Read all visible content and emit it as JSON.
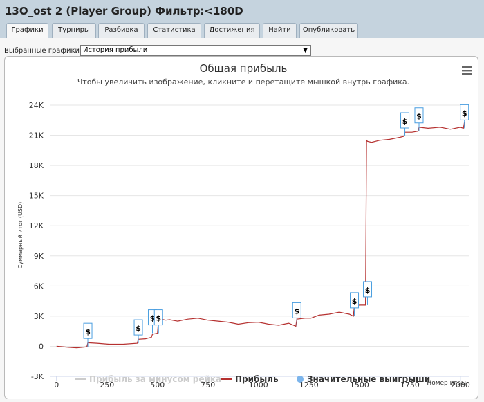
{
  "window": {
    "title": "13O_ost 2 (Player Group) Фильтр:<180D"
  },
  "tabs": [
    {
      "label": "Графики",
      "active": true
    },
    {
      "label": "Турниры"
    },
    {
      "label": "Разбивка"
    },
    {
      "label": "Статистика"
    },
    {
      "label": "Достижения"
    },
    {
      "label": "Найти"
    },
    {
      "label": "Опубликовать"
    }
  ],
  "selector": {
    "label": "Выбранные графики:",
    "value": "История прибыли"
  },
  "colors": {
    "line": "#b5302f",
    "accent_marker": "#4a9ee0",
    "grid": "#e6e6e6"
  },
  "chart_data": {
    "type": "line",
    "title": "Общая прибыль",
    "subtitle": "Чтобы увеличить изображение, кликните и перетащите мышкой внутрь графика.",
    "xlabel": "Номер игры",
    "ylabel": "Суммарный итог (USD)",
    "xlim": [
      -30,
      2045
    ],
    "ylim": [
      -3000,
      24000
    ],
    "x_ticks": [
      0,
      250,
      500,
      750,
      1000,
      1250,
      1500,
      1750,
      2000
    ],
    "y_ticks": [
      -3000,
      0,
      3000,
      6000,
      9000,
      12000,
      15000,
      18000,
      21000,
      24000
    ],
    "y_tick_labels": [
      "-3K",
      "0",
      "3K",
      "6K",
      "9K",
      "12K",
      "15K",
      "18K",
      "21K",
      "24K"
    ],
    "x_tick_labels": [
      "0",
      "250",
      "500",
      "750",
      "1000",
      "1250",
      "1500",
      "1750",
      "2000"
    ],
    "grid": true,
    "legend_position": "bottom",
    "series": [
      {
        "name": "Прибыль",
        "x": [
          0,
          60,
          100,
          150,
          155,
          200,
          260,
          330,
          400,
          405,
          440,
          470,
          475,
          500,
          505,
          520,
          540,
          560,
          600,
          650,
          700,
          750,
          800,
          850,
          900,
          950,
          1000,
          1050,
          1100,
          1150,
          1185,
          1190,
          1230,
          1260,
          1300,
          1350,
          1400,
          1450,
          1470,
          1475,
          1500,
          1530,
          1535,
          1540,
          1560,
          1600,
          1650,
          1700,
          1720,
          1725,
          1760,
          1790,
          1795,
          1840,
          1900,
          1950,
          2000,
          2015,
          2020
        ],
        "y": [
          0,
          -100,
          -150,
          -50,
          350,
          300,
          200,
          200,
          300,
          700,
          750,
          900,
          1200,
          1300,
          2600,
          2700,
          2600,
          2650,
          2500,
          2700,
          2800,
          2600,
          2500,
          2400,
          2200,
          2350,
          2400,
          2200,
          2100,
          2300,
          2000,
          2700,
          2800,
          2800,
          3100,
          3200,
          3400,
          3200,
          3000,
          4000,
          4100,
          4100,
          20500,
          20400,
          20300,
          20500,
          20600,
          20800,
          20900,
          21300,
          21300,
          21400,
          21800,
          21700,
          21800,
          21600,
          21800,
          21700,
          22300
        ]
      },
      {
        "name": "Прибыль за минусом рейка",
        "values": []
      },
      {
        "name": "Значительные выигрыши",
        "marker": "$",
        "x": [
          155,
          405,
          475,
          505,
          1190,
          1475,
          1540,
          1725,
          1795,
          2020
        ],
        "y": [
          -50,
          300,
          1300,
          1300,
          2000,
          3000,
          4100,
          20900,
          21400,
          21700
        ]
      }
    ],
    "legend": [
      {
        "label": "Прибыль за минусом рейка",
        "color": "#cccccc",
        "kind": "line",
        "muted": true
      },
      {
        "label": "Прибыль",
        "color": "#b5302f",
        "kind": "line"
      },
      {
        "label": "Значительные выигрыши",
        "color": "#7cb5ec",
        "kind": "dot"
      }
    ],
    "menu_icon": "hamburger-menu-icon"
  }
}
